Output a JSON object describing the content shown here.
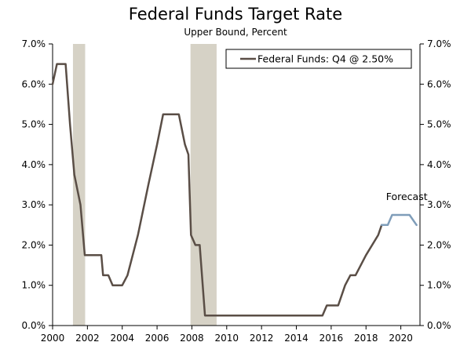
{
  "chart_data": {
    "type": "line",
    "title": "Federal Funds Target Rate",
    "subtitle": "Upper Bound, Percent",
    "xlabel": "",
    "ylabel": "",
    "xlim": [
      2000,
      2021.1
    ],
    "ylim": [
      0,
      7
    ],
    "x_ticks": [
      2000,
      2002,
      2004,
      2006,
      2008,
      2010,
      2012,
      2014,
      2016,
      2018,
      2020
    ],
    "y_ticks": [
      {
        "value": 0,
        "label": "0.0%"
      },
      {
        "value": 1,
        "label": "1.0%"
      },
      {
        "value": 2,
        "label": "2.0%"
      },
      {
        "value": 3,
        "label": "3.0%"
      },
      {
        "value": 4,
        "label": "4.0%"
      },
      {
        "value": 5,
        "label": "5.0%"
      },
      {
        "value": 6,
        "label": "6.0%"
      },
      {
        "value": 7,
        "label": "7.0%"
      }
    ],
    "grid": false,
    "legend_position": "top-right",
    "recessions": [
      {
        "start": 2001.17,
        "end": 2001.87
      },
      {
        "start": 2007.92,
        "end": 2009.42
      }
    ],
    "series": [
      {
        "name": "Federal Funds: Q4 @ 2.50%",
        "color": "#5a4e46",
        "points": [
          [
            2000.0,
            6.0
          ],
          [
            2000.25,
            6.5
          ],
          [
            2000.75,
            6.5
          ],
          [
            2001.0,
            5.0
          ],
          [
            2001.25,
            3.75
          ],
          [
            2001.6,
            3.0
          ],
          [
            2001.85,
            1.75
          ],
          [
            2002.5,
            1.75
          ],
          [
            2002.8,
            1.75
          ],
          [
            2002.9,
            1.25
          ],
          [
            2003.2,
            1.25
          ],
          [
            2003.45,
            1.0
          ],
          [
            2004.0,
            1.0
          ],
          [
            2004.3,
            1.25
          ],
          [
            2004.9,
            2.25
          ],
          [
            2005.5,
            3.5
          ],
          [
            2006.0,
            4.5
          ],
          [
            2006.35,
            5.25
          ],
          [
            2007.25,
            5.25
          ],
          [
            2007.6,
            4.5
          ],
          [
            2007.8,
            4.25
          ],
          [
            2007.95,
            2.25
          ],
          [
            2008.2,
            2.0
          ],
          [
            2008.45,
            2.0
          ],
          [
            2008.75,
            0.25
          ],
          [
            2015.5,
            0.25
          ],
          [
            2015.75,
            0.5
          ],
          [
            2016.4,
            0.5
          ],
          [
            2016.8,
            1.0
          ],
          [
            2017.1,
            1.25
          ],
          [
            2017.4,
            1.25
          ],
          [
            2018.0,
            1.75
          ],
          [
            2018.7,
            2.25
          ],
          [
            2018.9,
            2.5
          ]
        ]
      },
      {
        "name": "Forecast",
        "color": "#7f9db9",
        "points": [
          [
            2018.9,
            2.5
          ],
          [
            2019.25,
            2.5
          ],
          [
            2019.5,
            2.75
          ],
          [
            2020.5,
            2.75
          ],
          [
            2020.9,
            2.5
          ]
        ]
      }
    ],
    "annotations": [
      {
        "text": "Forecast",
        "x": 2019.15,
        "y": 3.12
      }
    ]
  },
  "colors": {
    "recession_shade": "#d6d2c6",
    "axis": "#000000"
  }
}
